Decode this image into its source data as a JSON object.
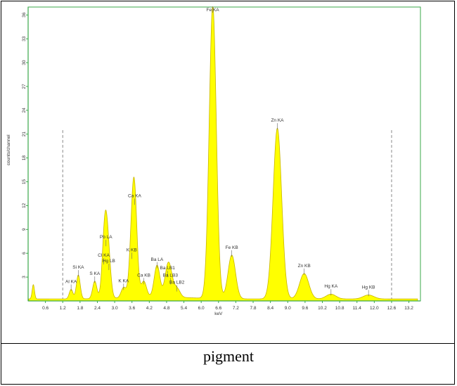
{
  "caption": "pigment",
  "chart_data": {
    "type": "area",
    "title": "",
    "xlabel": "keV",
    "ylabel": "counts/channel",
    "xlim": [
      0,
      13.6
    ],
    "ylim": [
      0,
      37
    ],
    "x_ticks": [
      0.6,
      1.2,
      1.8,
      2.4,
      3.0,
      3.6,
      4.2,
      4.8,
      5.4,
      6.0,
      6.6,
      7.2,
      7.8,
      8.4,
      9.0,
      9.6,
      10.2,
      10.8,
      11.4,
      12.0,
      12.6,
      13.2
    ],
    "x_tick_labels": [
      "0.6",
      "1.2",
      "1.8",
      "2.4",
      "3.0",
      "3.6",
      "4.2",
      "4.8",
      "5.4",
      "6.0",
      "6.6",
      "7.2",
      "7.8",
      "8.4",
      "9.0",
      "9.6",
      "10.2",
      "10.8",
      "11.4",
      "12.0",
      "12.6",
      "13.2"
    ],
    "y_ticks": [
      3,
      6,
      9,
      12,
      15,
      18,
      21,
      24,
      27,
      30,
      33,
      36
    ],
    "y_tick_labels": [
      "3",
      "6",
      "9",
      "12",
      "15",
      "18",
      "21",
      "24",
      "27",
      "30",
      "33",
      "36"
    ],
    "roi_markers_x": [
      1.2,
      12.6
    ],
    "fill_color": "#ffff00",
    "line_color": "#c8b400",
    "axis_color": "#3aa84a",
    "peaks": [
      {
        "label": "Al KA",
        "x": 1.49,
        "y": 1.2
      },
      {
        "label": "Si KA",
        "x": 1.74,
        "y": 3.0
      },
      {
        "label": "S KA",
        "x": 2.31,
        "y": 2.2
      },
      {
        "label": "Cl KA",
        "x": 2.62,
        "y": 4.5
      },
      {
        "label": "Pb LA",
        "x": 2.7,
        "y": 6.8
      },
      {
        "label": "Hg LB",
        "x": 2.8,
        "y": 3.8
      },
      {
        "label": "K KA",
        "x": 3.31,
        "y": 1.3
      },
      {
        "label": "Ca KA",
        "x": 3.69,
        "y": 12.0
      },
      {
        "label": "K KB",
        "x": 3.59,
        "y": 5.2
      },
      {
        "label": "Ca KB",
        "x": 4.01,
        "y": 2.0
      },
      {
        "label": "Ba LA",
        "x": 4.47,
        "y": 4.0
      },
      {
        "label": "Ba LB1",
        "x": 4.83,
        "y": 2.9
      },
      {
        "label": "Ba LB3",
        "x": 4.93,
        "y": 2.0
      },
      {
        "label": "Ba LB2",
        "x": 5.16,
        "y": 1.1
      },
      {
        "label": "Fe KA",
        "x": 6.4,
        "y": 37.0
      },
      {
        "label": "Fe KB",
        "x": 7.06,
        "y": 5.5
      },
      {
        "label": "Zn KA",
        "x": 8.64,
        "y": 21.5
      },
      {
        "label": "Zn KB",
        "x": 9.57,
        "y": 3.2
      },
      {
        "label": "Hg KA",
        "x": 10.5,
        "y": 0.6
      },
      {
        "label": "Hg KB",
        "x": 11.8,
        "y": 0.5
      }
    ]
  }
}
